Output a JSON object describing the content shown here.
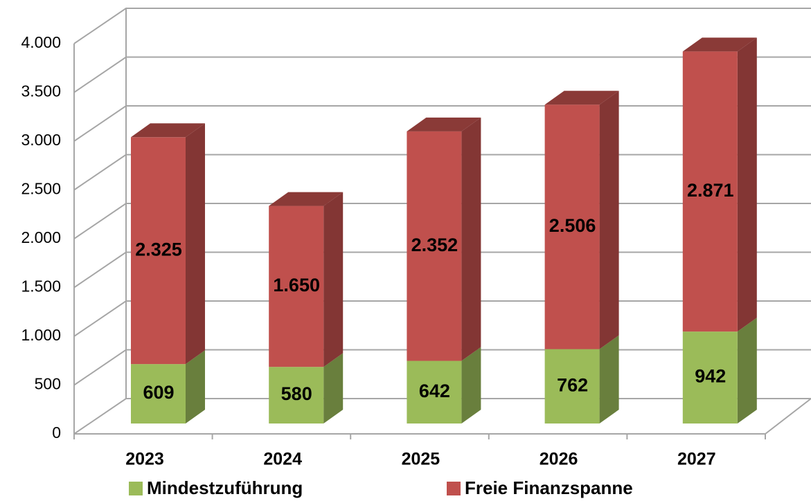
{
  "chart_data": {
    "type": "bar3d_stacked",
    "categories": [
      "2023",
      "2024",
      "2025",
      "2026",
      "2027"
    ],
    "series": [
      {
        "name": "Mindestzuführung",
        "color": "#9bbb59",
        "values": [
          609,
          580,
          642,
          762,
          942
        ]
      },
      {
        "name": "Freie Finanzspanne",
        "color": "#c0504d",
        "values": [
          2325,
          1650,
          2352,
          2506,
          2871
        ],
        "value_labels": [
          "2.325",
          "1.650",
          "2.352",
          "2.506",
          "2.871"
        ]
      }
    ],
    "ylim": [
      0,
      4000
    ],
    "yticks": [
      0,
      500,
      {
        "value": 1000,
        "label": "1.000"
      },
      {
        "value": 1500,
        "label": "1.500"
      },
      {
        "value": 2000,
        "label": "2.000"
      },
      {
        "value": 2500,
        "label": "2.500"
      },
      {
        "value": 3000,
        "label": "3.000"
      },
      {
        "value": 3500,
        "label": "3.500"
      },
      {
        "value": 4000,
        "label": "4.000"
      }
    ],
    "grid": true,
    "legend": "bottom"
  }
}
